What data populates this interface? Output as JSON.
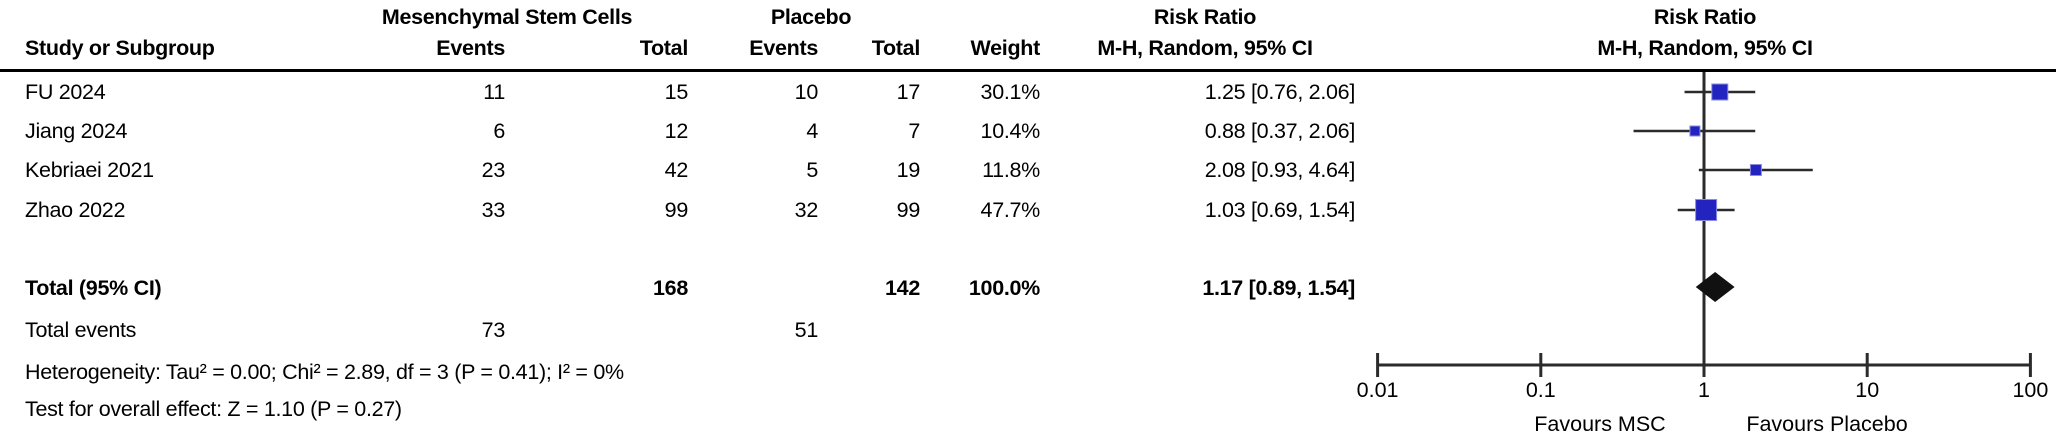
{
  "header": {
    "group1": "Mesenchymal Stem Cells",
    "group2": "Placebo",
    "study": "Study or Subgroup",
    "events1": "Events",
    "total1": "Total",
    "events2": "Events",
    "total2": "Total",
    "weight": "Weight",
    "rr_line1": "Risk Ratio",
    "rr_line2": "M-H, Random, 95% CI",
    "plot_line1": "Risk Ratio",
    "plot_line2": "M-H, Random, 95% CI"
  },
  "table": {
    "rows": [
      {
        "study": "FU 2024",
        "e1": "11",
        "t1": "15",
        "e2": "10",
        "t2": "17",
        "weight": "30.1%",
        "rr": "1.25 [0.76, 2.06]"
      },
      {
        "study": "Jiang 2024",
        "e1": "6",
        "t1": "12",
        "e2": "4",
        "t2": "7",
        "weight": "10.4%",
        "rr": "0.88 [0.37, 2.06]"
      },
      {
        "study": "Kebriaei 2021",
        "e1": "23",
        "t1": "42",
        "e2": "5",
        "t2": "19",
        "weight": "11.8%",
        "rr": "2.08 [0.93, 4.64]"
      },
      {
        "study": "Zhao 2022",
        "e1": "33",
        "t1": "99",
        "e2": "32",
        "t2": "99",
        "weight": "47.7%",
        "rr": "1.03 [0.69, 1.54]"
      }
    ],
    "total_row": {
      "label": "Total (95% CI)",
      "t1": "168",
      "t2": "142",
      "weight": "100.0%",
      "rr": "1.17 [0.89, 1.54]"
    },
    "total_events_row": {
      "label": "Total events",
      "e1": "73",
      "e2": "51"
    },
    "footnote_heterogeneity": "Heterogeneity: Tau² = 0.00; Chi² = 2.89, df = 3 (P = 0.41); I² = 0%",
    "footnote_overall": "Test for overall effect: Z = 1.10 (P = 0.27)"
  },
  "chart_data": {
    "type": "forest",
    "x_scale": "log",
    "x_ticks": [
      0.01,
      0.1,
      1,
      10,
      100
    ],
    "x_tick_labels": [
      "0.01",
      "0.1",
      "1",
      "10",
      "100"
    ],
    "null_line": 1,
    "studies": [
      {
        "name": "FU 2024",
        "rr": 1.25,
        "ci_low": 0.76,
        "ci_high": 2.06,
        "weight_pct": 30.1
      },
      {
        "name": "Jiang 2024",
        "rr": 0.88,
        "ci_low": 0.37,
        "ci_high": 2.06,
        "weight_pct": 10.4
      },
      {
        "name": "Kebriaei 2021",
        "rr": 2.08,
        "ci_low": 0.93,
        "ci_high": 4.64,
        "weight_pct": 11.8
      },
      {
        "name": "Zhao 2022",
        "rr": 1.03,
        "ci_low": 0.69,
        "ci_high": 1.54,
        "weight_pct": 47.7
      }
    ],
    "total": {
      "rr": 1.17,
      "ci_low": 0.89,
      "ci_high": 1.54,
      "weight_pct": 100.0
    },
    "favours_left": "Favours MSC",
    "favours_right": "Favours Placebo",
    "marker_color": "#2323bf",
    "marker_edge_color": "#8a8ae0",
    "diamond_color": "#111111",
    "line_color": "#2b2b2b"
  }
}
